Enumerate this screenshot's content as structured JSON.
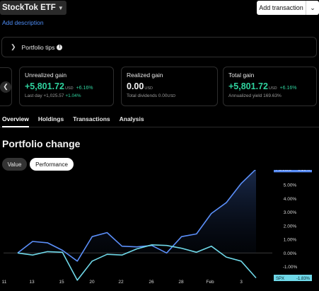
{
  "header": {
    "portfolio_name": "StockTok ETF",
    "add_transaction_label": "Add transaction",
    "add_description_label": "Add description"
  },
  "tips": {
    "label": "Portfolio tips",
    "info_glyph": "!"
  },
  "cards": {
    "unrealized": {
      "title": "Unrealized gain",
      "value": "+5,801.72",
      "unit": "USD",
      "pct": "+6.16%",
      "sub_prefix": "Last day",
      "sub_value": "+1,025.57",
      "sub_pct": "+1.04%"
    },
    "realized": {
      "title": "Realized gain",
      "value": "0.00",
      "unit": "USD",
      "sub": "Total dividends 0.00",
      "sub_unit": "USD"
    },
    "total": {
      "title": "Total gain",
      "value": "+5,801.72",
      "unit": "USD",
      "pct": "+6.16%",
      "sub": "Annualized yield 169.63%"
    }
  },
  "tabs": [
    "Overview",
    "Holdings",
    "Transactions",
    "Analysis"
  ],
  "active_tab": "Overview",
  "section_title": "Portfolio change",
  "toggle": {
    "value_label": "Value",
    "performance_label": "Performance",
    "selected": "Performance"
  },
  "colors": {
    "accent_blue": "#4f8ef7",
    "gain_green": "#2fd29e",
    "portfolio_line": "#5b8ff9",
    "spx_line": "#6fd8e8"
  },
  "chart_data": {
    "type": "line",
    "x_ticks": [
      "11",
      "13",
      "15",
      "20",
      "22",
      "26",
      "28",
      "Feb",
      "3"
    ],
    "y_ticks": [
      "5.00%",
      "4.00%",
      "3.00%",
      "2.00%",
      "1.00%",
      "0.00%",
      "-1.00%"
    ],
    "ylim": [
      -1.7,
      6.1
    ],
    "series": [
      {
        "name": "Portfolio",
        "end_label": "6.16%",
        "values": [
          0.0,
          0.85,
          0.75,
          0.2,
          -0.6,
          1.2,
          1.5,
          0.5,
          0.45,
          0.55,
          0.0,
          1.2,
          1.4,
          2.9,
          3.7,
          5.1,
          6.16
        ]
      },
      {
        "name": "SPX",
        "end_label": "-1.83%",
        "values": [
          0.0,
          -0.15,
          0.1,
          0.05,
          -2.0,
          -0.6,
          -0.1,
          -0.15,
          0.3,
          0.6,
          0.55,
          0.35,
          0.05,
          0.5,
          -0.3,
          -0.6,
          -1.83
        ]
      }
    ]
  }
}
